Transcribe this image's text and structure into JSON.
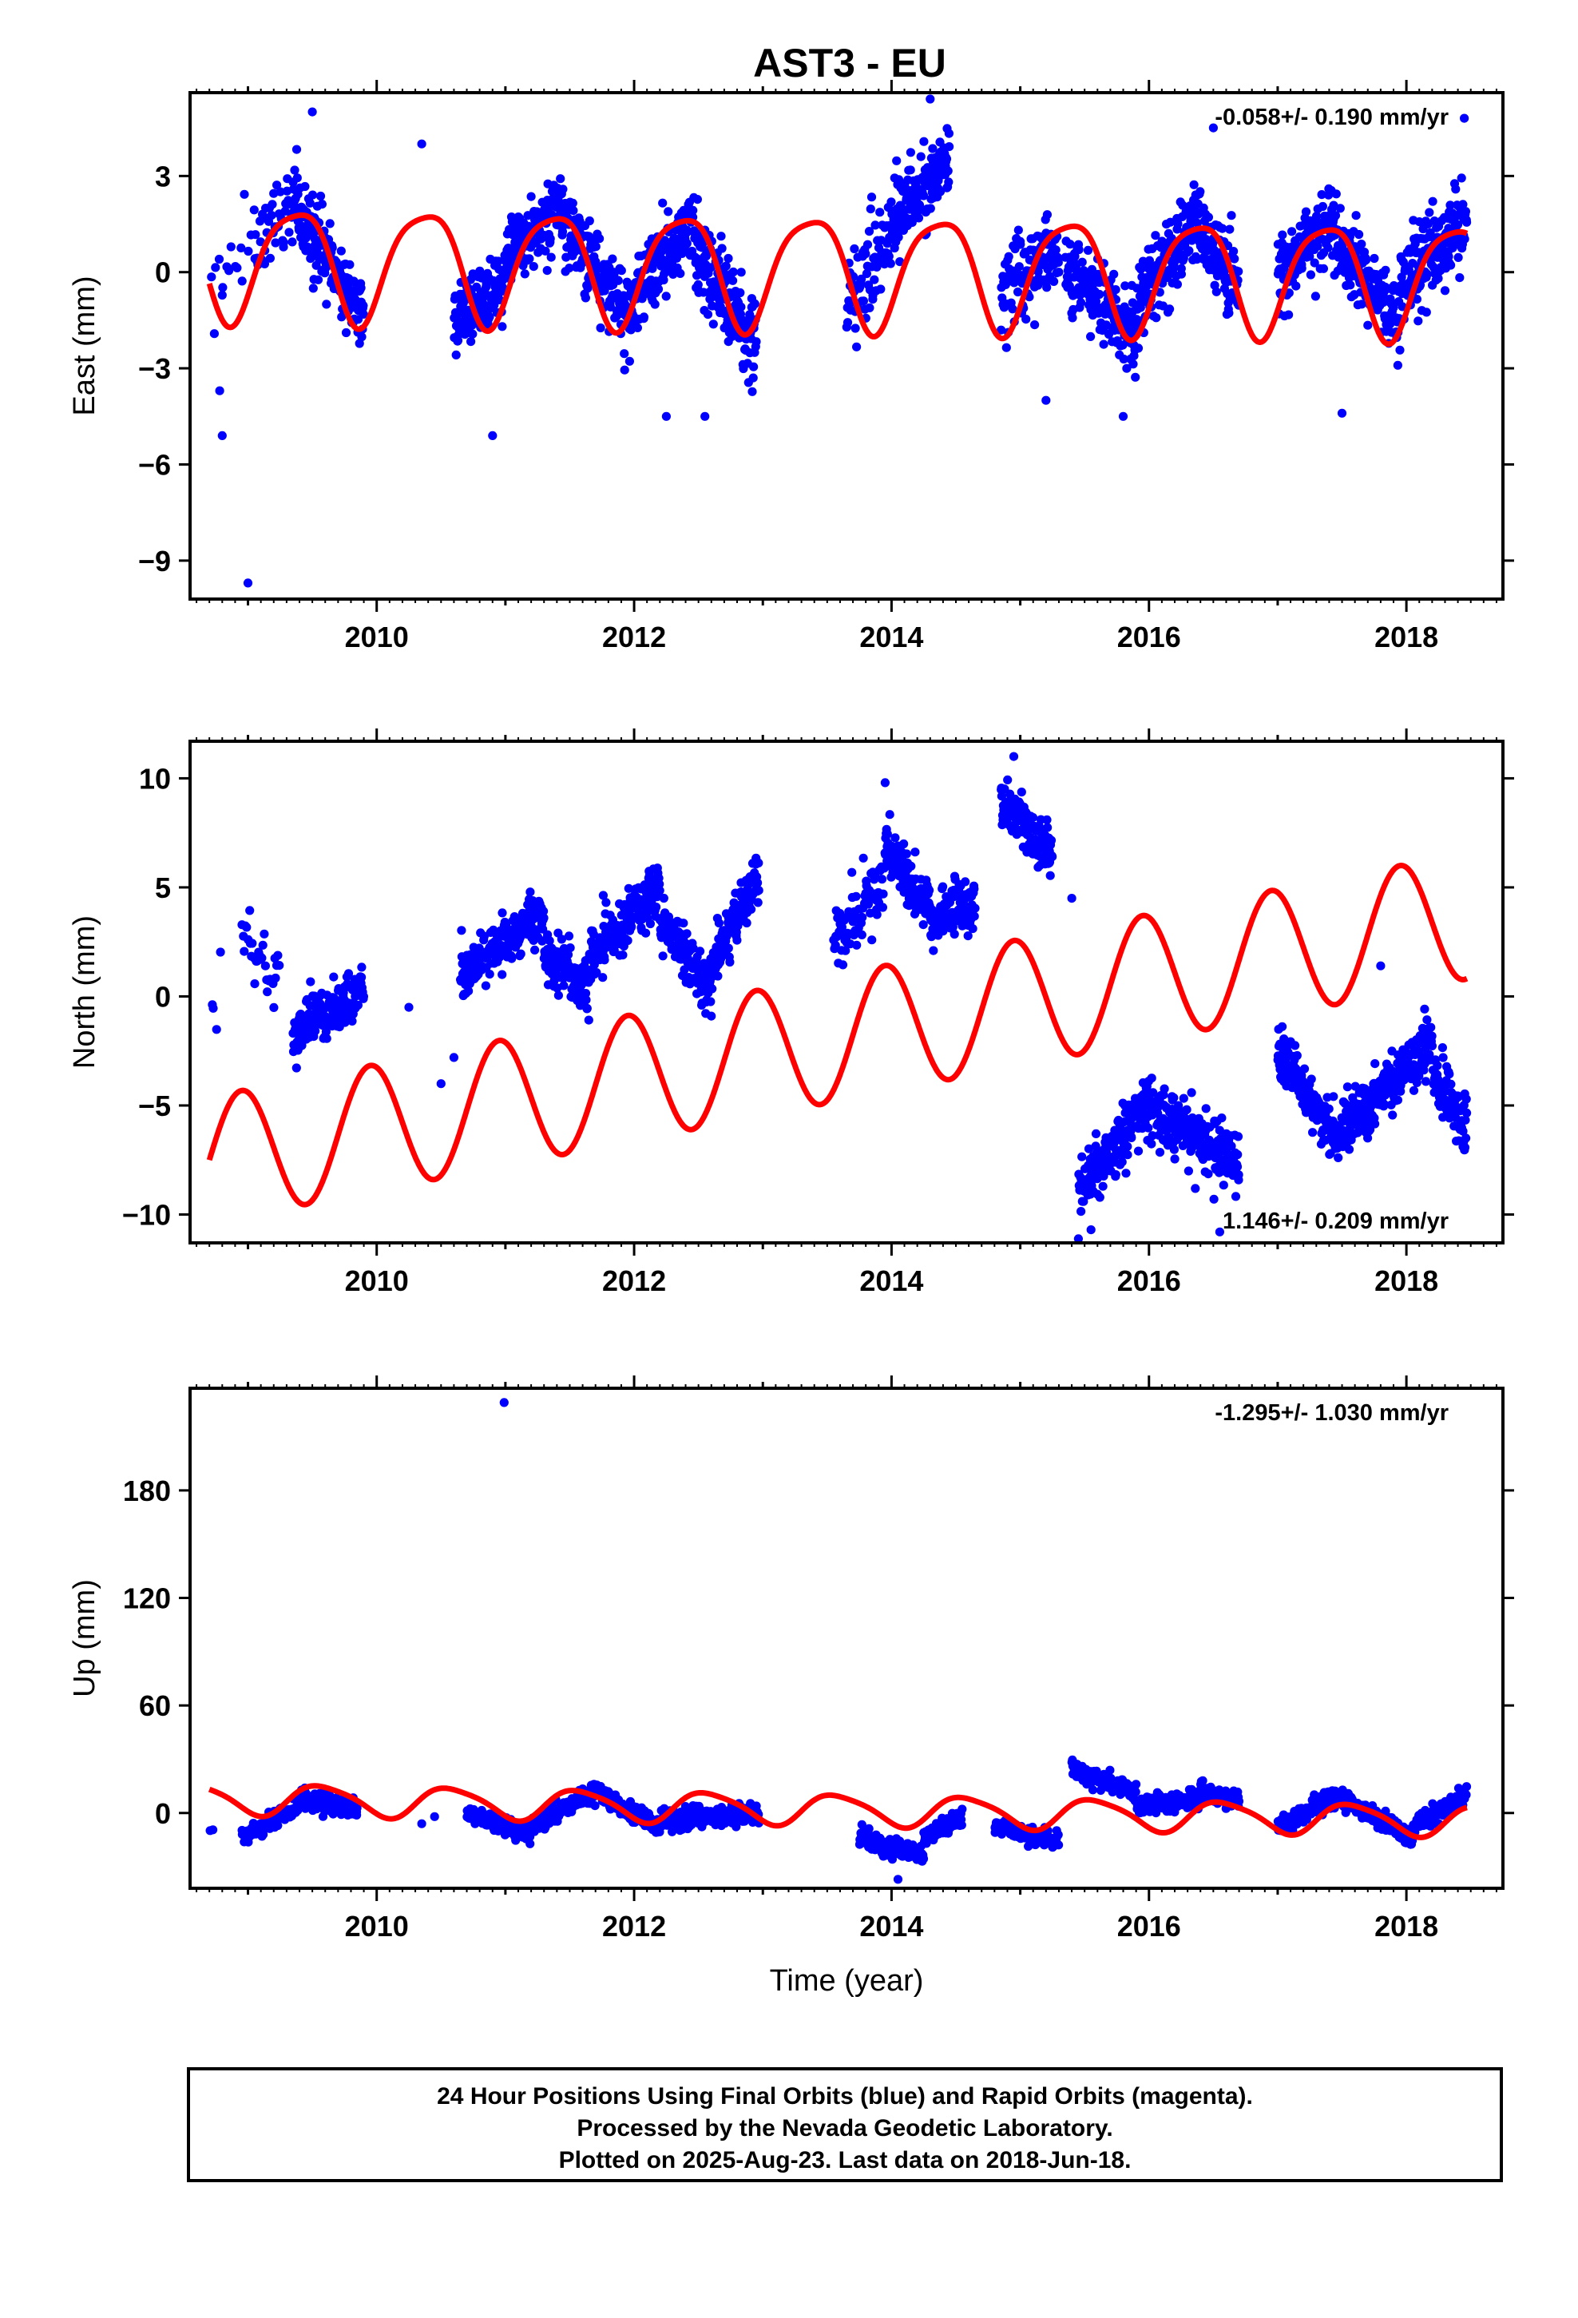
{
  "title": "AST3 - EU",
  "colors": {
    "points": "#0000ff",
    "model": "#ff0000",
    "frame": "#000000"
  },
  "caption": {
    "lines": [
      "24 Hour Positions Using Final Orbits (blue) and Rapid Orbits (magenta).",
      "Processed by the Nevada Geodetic Laboratory.",
      "Plotted on 2025-Aug-23. Last data on 2018-Jun-18."
    ]
  },
  "chart_data": [
    {
      "type": "scatter",
      "component": "East",
      "ylabel": "East (mm)",
      "xlabel": "",
      "rate_text": "-0.058+/- 0.190 mm/yr",
      "rate_position": "top-right",
      "xlim": [
        2008.55,
        2018.75
      ],
      "ylim": [
        -10.2,
        5.6
      ],
      "xticks": [
        2010,
        2012,
        2014,
        2016,
        2018
      ],
      "xtick_labels": [
        "2010",
        "2012",
        "2014",
        "2016",
        "2018"
      ],
      "yticks": [
        3,
        0,
        -3,
        -6,
        -9
      ],
      "ytick_labels": [
        "3",
        "0",
        "−3",
        "−6",
        "−9"
      ],
      "grid": false,
      "model": {
        "intercept": 0.1,
        "slope": -0.058,
        "t0": 2013.5,
        "annual_amp": 1.75,
        "annual_peak": 2009.37,
        "semiannual_amp": 0.35,
        "semiannual_peak": 2009.1
      },
      "observations": {
        "segments": [
          {
            "start": 2008.7,
            "end": 2009.05,
            "per_year": 50,
            "trend_start": 0.0,
            "trend_end": 0.5,
            "noise": 1.3
          },
          {
            "start": 2009.05,
            "end": 2009.35,
            "per_year": 150,
            "trend_start": 0.8,
            "trend_end": 2.0,
            "noise": 1.2
          },
          {
            "start": 2009.35,
            "end": 2009.9,
            "per_year": 330,
            "trend_start": 2.2,
            "trend_end": -1.3,
            "noise": 1.0
          },
          {
            "start": 2010.6,
            "end": 2011.0,
            "per_year": 330,
            "trend_start": -1.6,
            "trend_end": -0.3,
            "noise": 0.9
          },
          {
            "start": 2011.0,
            "end": 2011.45,
            "per_year": 330,
            "trend_start": 0.5,
            "trend_end": 2.1,
            "noise": 0.9
          },
          {
            "start": 2011.45,
            "end": 2012.0,
            "per_year": 330,
            "trend_start": 1.5,
            "trend_end": -1.5,
            "noise": 1.0
          },
          {
            "start": 2012.0,
            "end": 2012.45,
            "per_year": 330,
            "trend_start": -0.8,
            "trend_end": 1.8,
            "noise": 1.0
          },
          {
            "start": 2012.45,
            "end": 2012.95,
            "per_year": 330,
            "trend_start": 1.0,
            "trend_end": -2.3,
            "noise": 1.1
          },
          {
            "start": 2013.65,
            "end": 2014.0,
            "per_year": 220,
            "trend_start": -0.8,
            "trend_end": 0.8,
            "noise": 1.2
          },
          {
            "start": 2014.0,
            "end": 2014.45,
            "per_year": 330,
            "trend_start": 1.6,
            "trend_end": 3.4,
            "noise": 1.0
          },
          {
            "start": 2014.85,
            "end": 2015.3,
            "per_year": 260,
            "trend_start": -0.7,
            "trend_end": 0.8,
            "noise": 1.1
          },
          {
            "start": 2015.35,
            "end": 2015.9,
            "per_year": 330,
            "trend_start": 0.2,
            "trend_end": -2.0,
            "noise": 1.0
          },
          {
            "start": 2015.9,
            "end": 2016.4,
            "per_year": 330,
            "trend_start": -1.0,
            "trend_end": 1.7,
            "noise": 1.0
          },
          {
            "start": 2016.4,
            "end": 2016.7,
            "per_year": 300,
            "trend_start": 1.3,
            "trend_end": -0.5,
            "noise": 1.0
          },
          {
            "start": 2017.0,
            "end": 2017.45,
            "per_year": 330,
            "trend_start": 0.0,
            "trend_end": 1.6,
            "noise": 1.0
          },
          {
            "start": 2017.45,
            "end": 2017.95,
            "per_year": 330,
            "trend_start": 0.9,
            "trend_end": -1.4,
            "noise": 1.0
          },
          {
            "start": 2017.95,
            "end": 2018.47,
            "per_year": 330,
            "trend_start": -0.4,
            "trend_end": 1.6,
            "noise": 1.1
          }
        ],
        "outliers": [
          {
            "x": 2008.8,
            "y": -5.1
          },
          {
            "x": 2008.78,
            "y": -3.7
          },
          {
            "x": 2009.0,
            "y": -9.7
          },
          {
            "x": 2009.5,
            "y": 5.0
          },
          {
            "x": 2010.35,
            "y": 4.0
          },
          {
            "x": 2010.9,
            "y": -5.1
          },
          {
            "x": 2012.25,
            "y": -4.5
          },
          {
            "x": 2012.55,
            "y": -4.5
          },
          {
            "x": 2014.3,
            "y": 5.4
          },
          {
            "x": 2015.2,
            "y": -4.0
          },
          {
            "x": 2015.8,
            "y": -4.5
          },
          {
            "x": 2016.5,
            "y": 4.5
          },
          {
            "x": 2017.5,
            "y": -4.4
          },
          {
            "x": 2018.45,
            "y": 4.8
          }
        ]
      }
    },
    {
      "type": "scatter",
      "component": "North",
      "ylabel": "North (mm)",
      "xlabel": "",
      "rate_text": "1.146+/- 0.209 mm/yr",
      "rate_position": "bottom-right",
      "xlim": [
        2008.55,
        2018.75
      ],
      "ylim": [
        -11.3,
        11.7
      ],
      "xticks": [
        2010,
        2012,
        2014,
        2016,
        2018
      ],
      "xtick_labels": [
        "2010",
        "2012",
        "2014",
        "2016",
        "2018"
      ],
      "yticks": [
        10,
        5,
        0,
        -5,
        -10
      ],
      "ytick_labels": [
        "10",
        "5",
        "0",
        "−5",
        "−10"
      ],
      "grid": false,
      "model": {
        "intercept": -2.0,
        "slope": 1.146,
        "t0": 2013.5,
        "annual_amp": 2.9,
        "annual_peak": 2008.95,
        "semiannual_amp": 0.0,
        "semiannual_peak": 2009.0
      },
      "observations": {
        "segments": [
          {
            "start": 2008.7,
            "end": 2008.8,
            "per_year": 40,
            "trend_start": -2.0,
            "trend_end": 1.0,
            "noise": 1.5
          },
          {
            "start": 2008.95,
            "end": 2009.25,
            "per_year": 110,
            "trend_start": 3.0,
            "trend_end": 0.5,
            "noise": 1.2
          },
          {
            "start": 2009.35,
            "end": 2009.9,
            "per_year": 330,
            "trend_start": -1.8,
            "trend_end": 0.5,
            "noise": 1.0
          },
          {
            "start": 2010.65,
            "end": 2011.3,
            "per_year": 330,
            "trend_start": 1.0,
            "trend_end": 3.8,
            "noise": 1.0
          },
          {
            "start": 2011.3,
            "end": 2011.65,
            "per_year": 330,
            "trend_start": 2.0,
            "trend_end": 0.3,
            "noise": 1.0
          },
          {
            "start": 2011.65,
            "end": 2012.2,
            "per_year": 330,
            "trend_start": 1.8,
            "trend_end": 5.0,
            "noise": 1.0
          },
          {
            "start": 2012.2,
            "end": 2012.6,
            "per_year": 330,
            "trend_start": 3.5,
            "trend_end": 0.3,
            "noise": 1.0
          },
          {
            "start": 2012.6,
            "end": 2012.97,
            "per_year": 330,
            "trend_start": 1.5,
            "trend_end": 5.5,
            "noise": 1.0
          },
          {
            "start": 2013.55,
            "end": 2013.95,
            "per_year": 200,
            "trend_start": 2.5,
            "trend_end": 5.0,
            "noise": 1.3
          },
          {
            "start": 2013.95,
            "end": 2014.3,
            "per_year": 330,
            "trend_start": 7.0,
            "trend_end": 4.0,
            "noise": 1.1
          },
          {
            "start": 2014.3,
            "end": 2014.65,
            "per_year": 330,
            "trend_start": 3.5,
            "trend_end": 4.3,
            "noise": 1.0
          },
          {
            "start": 2014.85,
            "end": 2015.25,
            "per_year": 330,
            "trend_start": 9.0,
            "trend_end": 6.5,
            "noise": 1.0
          },
          {
            "start": 2015.45,
            "end": 2016.0,
            "per_year": 330,
            "trend_start": -9.0,
            "trend_end": -4.8,
            "noise": 1.0
          },
          {
            "start": 2016.0,
            "end": 2016.7,
            "per_year": 330,
            "trend_start": -5.0,
            "trend_end": -7.8,
            "noise": 1.1
          },
          {
            "start": 2017.0,
            "end": 2017.45,
            "per_year": 330,
            "trend_start": -2.5,
            "trend_end": -6.5,
            "noise": 1.1
          },
          {
            "start": 2017.45,
            "end": 2018.2,
            "per_year": 330,
            "trend_start": -6.5,
            "trend_end": -2.0,
            "noise": 1.1
          },
          {
            "start": 2018.2,
            "end": 2018.47,
            "per_year": 330,
            "trend_start": -3.5,
            "trend_end": -6.0,
            "noise": 1.0
          }
        ],
        "outliers": [
          {
            "x": 2010.5,
            "y": -4.0
          },
          {
            "x": 2010.6,
            "y": -2.8
          },
          {
            "x": 2010.25,
            "y": -0.5
          },
          {
            "x": 2013.95,
            "y": 9.8
          },
          {
            "x": 2014.95,
            "y": 11.0
          },
          {
            "x": 2015.4,
            "y": 4.5
          },
          {
            "x": 2016.55,
            "y": -10.8
          },
          {
            "x": 2017.8,
            "y": 1.4
          },
          {
            "x": 2015.55,
            "y": -10.7
          }
        ]
      }
    },
    {
      "type": "scatter",
      "component": "Up",
      "ylabel": "Up (mm)",
      "xlabel": "Time (year)",
      "rate_text": "-1.295+/- 1.030 mm/yr",
      "rate_position": "top-right",
      "xlim": [
        2008.55,
        2018.75
      ],
      "ylim": [
        -42,
        237
      ],
      "xticks": [
        2010,
        2012,
        2014,
        2016,
        2018
      ],
      "xtick_labels": [
        "2010",
        "2012",
        "2014",
        "2016",
        "2018"
      ],
      "yticks": [
        180,
        120,
        60,
        0
      ],
      "ytick_labels": [
        "180",
        "120",
        "60",
        "0"
      ],
      "grid": false,
      "model": {
        "intercept": 2.0,
        "slope": -1.295,
        "t0": 2013.5,
        "annual_amp": 8.5,
        "annual_peak": 2009.58,
        "semiannual_amp": 1.5,
        "semiannual_peak": 2008.9
      },
      "observations": {
        "segments": [
          {
            "start": 2008.7,
            "end": 2008.75,
            "per_year": 40,
            "trend_start": -8.0,
            "trend_end": -10.0,
            "noise": 2.5
          },
          {
            "start": 2008.95,
            "end": 2009.4,
            "per_year": 200,
            "trend_start": -14.0,
            "trend_end": 4.0,
            "noise": 4.0
          },
          {
            "start": 2009.4,
            "end": 2009.85,
            "per_year": 330,
            "trend_start": 8.0,
            "trend_end": 2.0,
            "noise": 4.0
          },
          {
            "start": 2010.7,
            "end": 2011.2,
            "per_year": 330,
            "trend_start": 0.0,
            "trend_end": -12.0,
            "noise": 4.0
          },
          {
            "start": 2011.2,
            "end": 2011.75,
            "per_year": 330,
            "trend_start": -8.0,
            "trend_end": 14.0,
            "noise": 4.0
          },
          {
            "start": 2011.75,
            "end": 2012.2,
            "per_year": 330,
            "trend_start": 10.0,
            "trend_end": -8.0,
            "noise": 4.0
          },
          {
            "start": 2012.2,
            "end": 2012.97,
            "per_year": 330,
            "trend_start": -4.0,
            "trend_end": 0.0,
            "noise": 4.5
          },
          {
            "start": 2013.75,
            "end": 2014.25,
            "per_year": 330,
            "trend_start": -14.0,
            "trend_end": -24.0,
            "noise": 4.5
          },
          {
            "start": 2014.25,
            "end": 2014.55,
            "per_year": 330,
            "trend_start": -14.0,
            "trend_end": -2.0,
            "noise": 4.0
          },
          {
            "start": 2014.8,
            "end": 2015.3,
            "per_year": 260,
            "trend_start": -8.0,
            "trend_end": -16.0,
            "noise": 4.0
          },
          {
            "start": 2015.4,
            "end": 2015.9,
            "per_year": 330,
            "trend_start": 24.0,
            "trend_end": 12.0,
            "noise": 4.0
          },
          {
            "start": 2015.9,
            "end": 2016.4,
            "per_year": 330,
            "trend_start": 4.0,
            "trend_end": 8.0,
            "noise": 4.0
          },
          {
            "start": 2016.4,
            "end": 2016.7,
            "per_year": 330,
            "trend_start": 12.0,
            "trend_end": 8.0,
            "noise": 4.0
          },
          {
            "start": 2017.0,
            "end": 2017.5,
            "per_year": 330,
            "trend_start": -8.0,
            "trend_end": 10.0,
            "noise": 4.0
          },
          {
            "start": 2017.5,
            "end": 2018.05,
            "per_year": 330,
            "trend_start": 8.0,
            "trend_end": -14.0,
            "noise": 4.0
          },
          {
            "start": 2018.05,
            "end": 2018.47,
            "per_year": 330,
            "trend_start": -8.0,
            "trend_end": 10.0,
            "noise": 4.0
          }
        ],
        "outliers": [
          {
            "x": 2010.99,
            "y": 229.0
          },
          {
            "x": 2014.05,
            "y": -37.0
          },
          {
            "x": 2010.35,
            "y": -6.0
          },
          {
            "x": 2010.45,
            "y": -2.0
          }
        ]
      }
    }
  ]
}
